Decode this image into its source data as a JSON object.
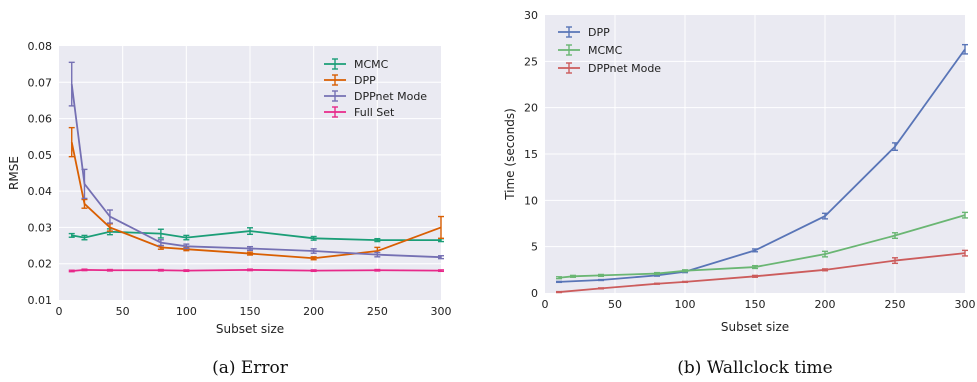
{
  "chart_data": [
    {
      "type": "line",
      "caption": "(a) Error",
      "title": "",
      "xlabel": "Subset size",
      "ylabel": "RMSE",
      "xlim": [
        0,
        300
      ],
      "ylim": [
        0.01,
        0.08
      ],
      "xticks": [
        0,
        50,
        100,
        150,
        200,
        250,
        300
      ],
      "yticks": [
        0.01,
        0.02,
        0.03,
        0.04,
        0.05,
        0.06,
        0.07,
        0.08
      ],
      "ytick_labels": [
        "0.01",
        "0.02",
        "0.03",
        "0.04",
        "0.05",
        "0.06",
        "0.07",
        "0.08"
      ],
      "grid": true,
      "legend_position": "top-right",
      "series": [
        {
          "name": "MCMC",
          "color": "#1b9e77",
          "x": [
            10,
            20,
            40,
            80,
            100,
            150,
            200,
            250,
            300
          ],
          "y": [
            0.0278,
            0.0272,
            0.0288,
            0.0283,
            0.0272,
            0.029,
            0.027,
            0.0265,
            0.0265
          ],
          "err": [
            0.0005,
            0.0006,
            0.0008,
            0.0012,
            0.0006,
            0.0009,
            0.0005,
            0.0004,
            0.0004
          ]
        },
        {
          "name": "DPP",
          "color": "#d95f02",
          "x": [
            10,
            20,
            40,
            80,
            100,
            150,
            200,
            250,
            300
          ],
          "y": [
            0.0535,
            0.0365,
            0.03,
            0.0245,
            0.024,
            0.0228,
            0.0215,
            0.0235,
            0.03
          ],
          "err": [
            0.004,
            0.0012,
            0.001,
            0.0005,
            0.0004,
            0.0004,
            0.0004,
            0.001,
            0.003
          ]
        },
        {
          "name": "DPPnet Mode",
          "color": "#7570b3",
          "x": [
            10,
            20,
            40,
            80,
            100,
            150,
            200,
            250,
            300
          ],
          "y": [
            0.0695,
            0.042,
            0.033,
            0.0258,
            0.0248,
            0.0242,
            0.0235,
            0.0225,
            0.0218
          ],
          "err": [
            0.006,
            0.004,
            0.0018,
            0.0008,
            0.0006,
            0.0005,
            0.0006,
            0.0006,
            0.0004
          ]
        },
        {
          "name": "Full Set",
          "color": "#e7298a",
          "x": [
            10,
            20,
            40,
            80,
            100,
            150,
            200,
            250,
            300
          ],
          "y": [
            0.018,
            0.0183,
            0.0182,
            0.0182,
            0.0181,
            0.0183,
            0.0181,
            0.0182,
            0.0181
          ],
          "err": [
            0.0002,
            0.0002,
            0.0002,
            0.0002,
            0.0002,
            0.0002,
            0.0002,
            0.0002,
            0.0002
          ]
        }
      ]
    },
    {
      "type": "line",
      "caption": "(b) Wallclock time",
      "title": "",
      "xlabel": "Subset size",
      "ylabel": "Time (seconds)",
      "xlim": [
        0,
        300
      ],
      "ylim": [
        0,
        30
      ],
      "xticks": [
        0,
        50,
        100,
        150,
        200,
        250,
        300
      ],
      "yticks": [
        0,
        5,
        10,
        15,
        20,
        25,
        30
      ],
      "ytick_labels": [
        "0",
        "5",
        "10",
        "15",
        "20",
        "25",
        "30"
      ],
      "grid": true,
      "legend_position": "top-left",
      "series": [
        {
          "name": "DPP",
          "color": "#5975b7",
          "x": [
            10,
            40,
            80,
            100,
            150,
            200,
            250,
            300
          ],
          "y": [
            1.2,
            1.4,
            1.9,
            2.3,
            4.6,
            8.3,
            15.8,
            26.3
          ],
          "err": [
            0.05,
            0.05,
            0.08,
            0.1,
            0.15,
            0.3,
            0.4,
            0.5
          ]
        },
        {
          "name": "MCMC",
          "color": "#6ab673",
          "x": [
            10,
            20,
            40,
            80,
            100,
            150,
            200,
            250,
            300
          ],
          "y": [
            1.65,
            1.8,
            1.9,
            2.1,
            2.4,
            2.8,
            4.2,
            6.2,
            8.4
          ],
          "err": [
            0.1,
            0.1,
            0.1,
            0.1,
            0.1,
            0.15,
            0.3,
            0.3,
            0.3
          ]
        },
        {
          "name": "DPPnet Mode",
          "color": "#cc5c5c",
          "x": [
            10,
            40,
            80,
            100,
            150,
            200,
            250,
            300
          ],
          "y": [
            0.1,
            0.5,
            1.0,
            1.2,
            1.8,
            2.5,
            3.5,
            4.3
          ],
          "err": [
            0.05,
            0.05,
            0.05,
            0.05,
            0.1,
            0.1,
            0.3,
            0.3
          ]
        }
      ]
    }
  ]
}
